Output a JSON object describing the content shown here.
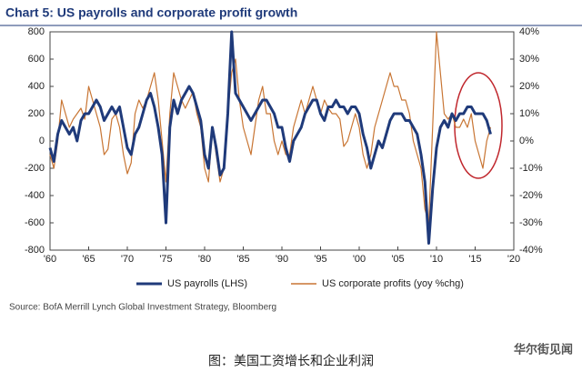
{
  "chart_data": {
    "type": "line",
    "title": "Chart 5: US payrolls and corporate profit growth",
    "source": "Source: BofA Merrill Lynch Global Investment Strategy, Bloomberg",
    "x": [
      1960,
      1960.5,
      1961,
      1961.5,
      1962,
      1962.5,
      1963,
      1963.5,
      1964,
      1964.5,
      1965,
      1965.5,
      1966,
      1966.5,
      1967,
      1967.5,
      1968,
      1968.5,
      1969,
      1969.5,
      1970,
      1970.5,
      1971,
      1971.5,
      1972,
      1972.5,
      1973,
      1973.5,
      1974,
      1974.5,
      1975,
      1975.5,
      1976,
      1976.5,
      1977,
      1977.5,
      1978,
      1978.5,
      1979,
      1979.5,
      1980,
      1980.5,
      1981,
      1981.5,
      1982,
      1982.5,
      1983,
      1983.5,
      1984,
      1984.5,
      1985,
      1985.5,
      1986,
      1986.5,
      1987,
      1987.5,
      1988,
      1988.5,
      1989,
      1989.5,
      1990,
      1990.5,
      1991,
      1991.5,
      1992,
      1992.5,
      1993,
      1993.5,
      1994,
      1994.5,
      1995,
      1995.5,
      1996,
      1996.5,
      1997,
      1997.5,
      1998,
      1998.5,
      1999,
      1999.5,
      2000,
      2000.5,
      2001,
      2001.5,
      2002,
      2002.5,
      2003,
      2003.5,
      2004,
      2004.5,
      2005,
      2005.5,
      2006,
      2006.5,
      2007,
      2007.5,
      2008,
      2008.5,
      2009,
      2009.5,
      2010,
      2010.5,
      2011,
      2011.5,
      2012,
      2012.5,
      2013,
      2013.5,
      2014,
      2014.5,
      2015,
      2015.5,
      2016,
      2016.5,
      2017
    ],
    "series": [
      {
        "name": "US payrolls (LHS)",
        "color": "#1f3a7a",
        "axis": "y",
        "values": [
          -50,
          -150,
          50,
          150,
          100,
          50,
          100,
          0,
          150,
          200,
          200,
          250,
          300,
          250,
          150,
          200,
          250,
          200,
          250,
          100,
          -50,
          -100,
          50,
          100,
          200,
          300,
          350,
          250,
          100,
          -100,
          -600,
          100,
          300,
          200,
          300,
          350,
          400,
          350,
          250,
          150,
          -100,
          -200,
          100,
          -50,
          -250,
          -200,
          200,
          800,
          350,
          300,
          250,
          200,
          150,
          200,
          250,
          300,
          300,
          250,
          200,
          100,
          100,
          -50,
          -150,
          0,
          50,
          100,
          200,
          250,
          300,
          300,
          200,
          150,
          250,
          250,
          300,
          250,
          250,
          200,
          250,
          250,
          200,
          50,
          -50,
          -200,
          -100,
          0,
          -50,
          50,
          150,
          200,
          200,
          200,
          150,
          150,
          100,
          50,
          -100,
          -300,
          -750,
          -350,
          -50,
          100,
          150,
          100,
          200,
          150,
          200,
          200,
          250,
          250,
          200,
          200,
          200,
          150,
          50
        ]
      },
      {
        "name": "US corporate profits (yoy %chg)",
        "color": "#c87533",
        "axis": "y2",
        "values": [
          -5,
          -10,
          0,
          15,
          10,
          5,
          8,
          10,
          12,
          8,
          20,
          15,
          10,
          5,
          -5,
          -3,
          8,
          10,
          5,
          -5,
          -12,
          -8,
          10,
          15,
          12,
          15,
          20,
          25,
          15,
          0,
          -15,
          10,
          25,
          20,
          15,
          12,
          15,
          18,
          10,
          5,
          -10,
          -15,
          5,
          -5,
          -15,
          -10,
          10,
          25,
          30,
          15,
          5,
          0,
          -5,
          5,
          15,
          20,
          10,
          10,
          0,
          -5,
          0,
          -5,
          -5,
          5,
          10,
          15,
          10,
          15,
          20,
          15,
          10,
          15,
          12,
          10,
          10,
          8,
          -2,
          0,
          5,
          10,
          5,
          -5,
          -10,
          -5,
          5,
          10,
          15,
          20,
          25,
          20,
          20,
          15,
          15,
          10,
          0,
          -5,
          -10,
          -25,
          -30,
          5,
          40,
          25,
          10,
          8,
          10,
          5,
          5,
          8,
          5,
          10,
          0,
          -5,
          -10,
          0,
          5
        ]
      }
    ],
    "xlim": [
      1960,
      2020
    ],
    "xticks": [
      {
        "value": 1960,
        "label": "'60"
      },
      {
        "value": 1965,
        "label": "'65"
      },
      {
        "value": 1970,
        "label": "'70"
      },
      {
        "value": 1975,
        "label": "'75"
      },
      {
        "value": 1980,
        "label": "'80"
      },
      {
        "value": 1985,
        "label": "'85"
      },
      {
        "value": 1990,
        "label": "'90"
      },
      {
        "value": 1995,
        "label": "'95"
      },
      {
        "value": 2000,
        "label": "'00"
      },
      {
        "value": 2005,
        "label": "'05"
      },
      {
        "value": 2010,
        "label": "'10"
      },
      {
        "value": 2015,
        "label": "'15"
      },
      {
        "value": 2020,
        "label": "'20"
      }
    ],
    "ylim": [
      -800,
      800
    ],
    "yticks": [
      -800,
      -600,
      -400,
      -200,
      0,
      200,
      400,
      600,
      800
    ],
    "y2lim": [
      -40,
      40
    ],
    "y2ticks": [
      {
        "value": -40,
        "label": "-40%"
      },
      {
        "value": -30,
        "label": "-30%"
      },
      {
        "value": -20,
        "label": "-20%"
      },
      {
        "value": -10,
        "label": "-10%"
      },
      {
        "value": 0,
        "label": "0%"
      },
      {
        "value": 10,
        "label": "10%"
      },
      {
        "value": 20,
        "label": "20%"
      },
      {
        "value": 30,
        "label": "30%"
      },
      {
        "value": 40,
        "label": "40%"
      }
    ]
  },
  "caption": "图：美国工资增长和企业利润",
  "watermark": "华尔街见闻"
}
